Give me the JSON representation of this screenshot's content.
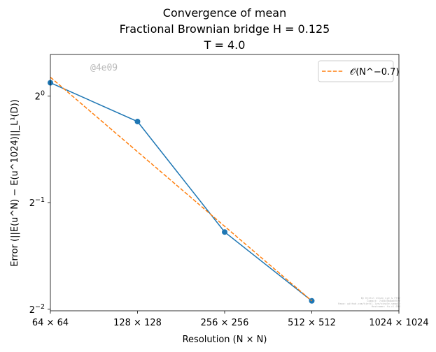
{
  "chart_data": {
    "type": "line",
    "title_lines": [
      "Convergence of mean",
      "Fractional Brownian bridge H = 0.125",
      "T = 4.0"
    ],
    "xlabel": "Resolution (N × N)",
    "ylabel": "Error (||E(u^N) − E(u^1024)||_L¹(D))",
    "x_scale": "log2",
    "y_scale": "log2",
    "xlim": [
      64,
      1024
    ],
    "ylim": [
      0.2475,
      1.31
    ],
    "x_ticks": [
      {
        "value": 64,
        "label": "64 × 64"
      },
      {
        "value": 128,
        "label": "128 × 128"
      },
      {
        "value": 256,
        "label": "256 × 256"
      },
      {
        "value": 512,
        "label": "512 × 512"
      },
      {
        "value": 1024,
        "label": "1024 × 1024"
      }
    ],
    "y_ticks": [
      {
        "value": 1,
        "label": "2",
        "exp": "0"
      },
      {
        "value": 0.5,
        "label": "2",
        "exp": "−1"
      },
      {
        "value": 0.25,
        "label": "2",
        "exp": "−2"
      }
    ],
    "grid": false,
    "legend_position": "top-right",
    "series": [
      {
        "x": [
          64,
          128,
          256,
          512
        ],
        "y": [
          1.09,
          0.847,
          0.413,
          0.264
        ],
        "color": "#1f77b4",
        "style": "solid",
        "marker": "circle"
      },
      {
        "name": "𝒪(N^−0.7)",
        "x": [
          64,
          512
        ],
        "y": [
          1.13,
          0.264
        ],
        "color": "#ff7f0e",
        "style": "dashed",
        "marker": "none"
      }
    ],
    "watermark": "@4e09"
  }
}
